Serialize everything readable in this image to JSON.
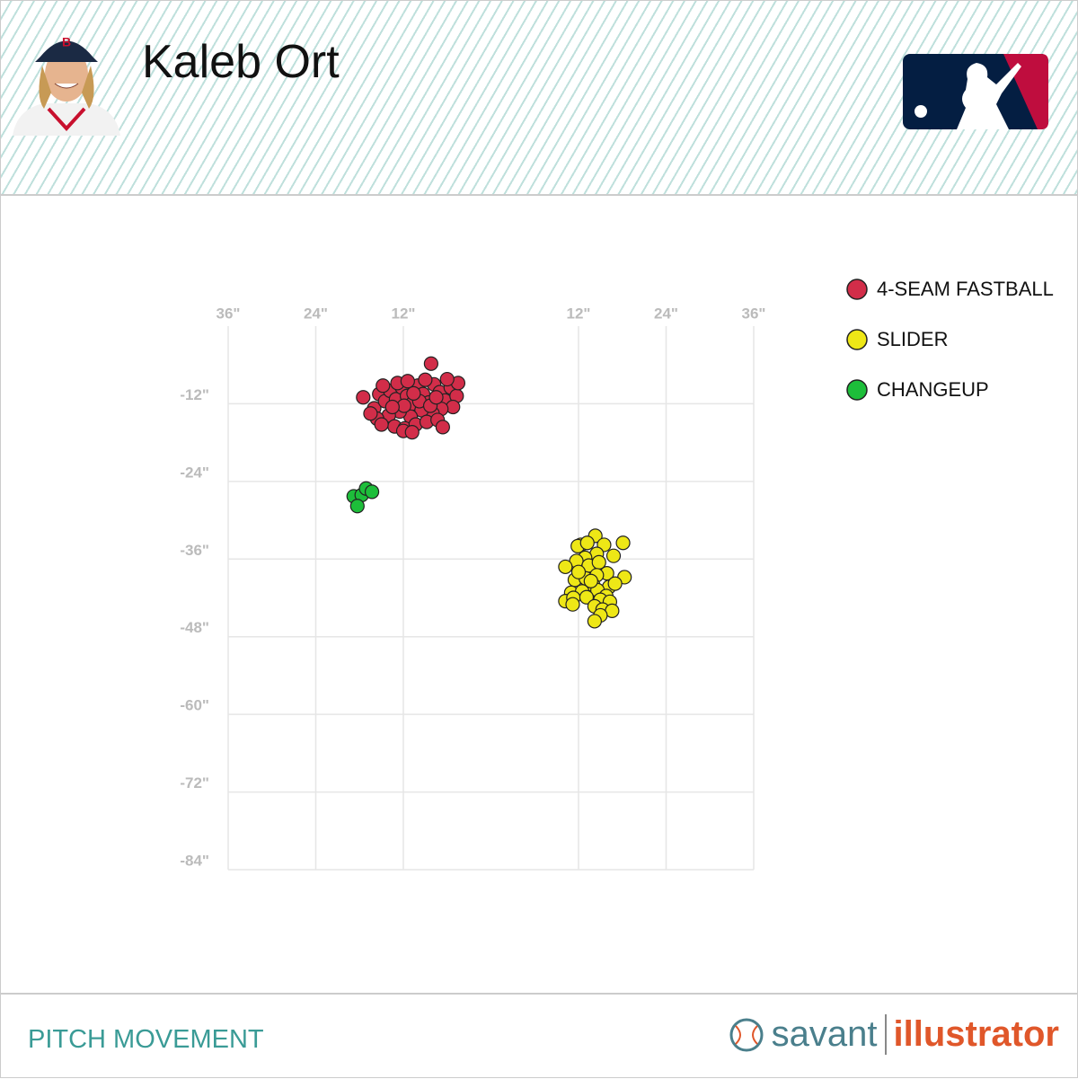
{
  "header": {
    "player_name": "Kaleb Ort"
  },
  "footer": {
    "title": "PITCH MOVEMENT",
    "brand_1": "savant",
    "brand_2": "illustrator"
  },
  "chart_data": {
    "type": "scatter",
    "xlim": [
      -36,
      36
    ],
    "ylim": [
      -84,
      0
    ],
    "xticks": [
      {
        "value": -36,
        "label": "36\""
      },
      {
        "value": -24,
        "label": "24\""
      },
      {
        "value": -12,
        "label": "12\""
      },
      {
        "value": 12,
        "label": "12\""
      },
      {
        "value": 24,
        "label": "24\""
      },
      {
        "value": 36,
        "label": "36\""
      }
    ],
    "yticks": [
      {
        "value": -12,
        "label": "-12\""
      },
      {
        "value": -24,
        "label": "-24\""
      },
      {
        "value": -36,
        "label": "-36\""
      },
      {
        "value": -48,
        "label": "-48\""
      },
      {
        "value": -60,
        "label": "-60\""
      },
      {
        "value": -72,
        "label": "-72\""
      },
      {
        "value": -84,
        "label": "-84\""
      }
    ],
    "grid": true,
    "legend": "top-right",
    "series": [
      {
        "name": "4-SEAM FASTBALL",
        "color": "#d22d49",
        "x": [
          -8.2,
          -17.5,
          -16.0,
          -15.3,
          -14.5,
          -13.8,
          -13.0,
          -12.2,
          -11.5,
          -10.8,
          -10.0,
          -9.3,
          -8.5,
          -7.8,
          -7.0,
          -6.3,
          -5.5,
          -4.7,
          -4.5,
          -5.2,
          -6.8,
          -8.0,
          -9.5,
          -11.0,
          -12.5,
          -14.0,
          -15.6,
          -13.2,
          -11.8,
          -10.3,
          -8.8,
          -7.3,
          -6.6,
          -9.8,
          -11.9,
          -13.5,
          -10.6,
          -12.8,
          -9.0,
          -6.0,
          -14.8,
          -16.5,
          -12.0,
          -10.8,
          -8.3,
          -7.5,
          -15.0,
          -11.4
        ],
        "y": [
          -5.8,
          -11.0,
          -12.7,
          -10.5,
          -11.6,
          -10.0,
          -11.3,
          -9.5,
          -10.8,
          -12.0,
          -9.2,
          -10.5,
          -11.8,
          -9.0,
          -10.2,
          -11.5,
          -9.5,
          -10.8,
          -8.8,
          -12.5,
          -12.8,
          -13.5,
          -13.0,
          -14.0,
          -13.2,
          -13.8,
          -14.3,
          -15.5,
          -15.8,
          -15.2,
          -14.8,
          -14.5,
          -15.6,
          -11.6,
          -12.3,
          -12.5,
          -10.4,
          -8.8,
          -8.3,
          -8.2,
          -9.2,
          -13.5,
          -16.2,
          -16.4,
          -12.3,
          -11.0,
          -15.2,
          -8.5
        ]
      },
      {
        "name": "SLIDER",
        "color": "#eee716",
        "x": [
          14.3,
          12.3,
          11.9,
          13.2,
          15.5,
          18.1,
          16.8,
          14.5,
          12.9,
          11.7,
          10.2,
          13.4,
          14.8,
          15.9,
          18.3,
          11.5,
          13.0,
          14.5,
          14.0,
          16.2,
          17.0,
          11.0,
          12.5,
          14.6,
          15.8,
          10.2,
          11.3,
          13.1,
          15.0,
          16.3,
          11.2,
          14.2,
          15.3,
          16.6,
          15.0,
          14.2,
          13.7,
          12.0
        ],
        "y": [
          -32.4,
          -33.8,
          -34.0,
          -33.5,
          -33.8,
          -33.5,
          -35.5,
          -35.2,
          -35.8,
          -36.3,
          -37.2,
          -37.0,
          -36.5,
          -38.2,
          -38.8,
          -39.2,
          -39.0,
          -38.5,
          -40.0,
          -40.3,
          -39.8,
          -41.2,
          -41.0,
          -40.8,
          -41.7,
          -42.5,
          -42.0,
          -41.9,
          -42.3,
          -42.6,
          -43.0,
          -43.3,
          -43.8,
          -44.0,
          -44.7,
          -45.6,
          -39.4,
          -38.0
        ]
      },
      {
        "name": "CHANGEUP",
        "color": "#1dbe3a",
        "x": [
          -18.8,
          -17.7,
          -17.1,
          -16.3,
          -18.3
        ],
        "y": [
          -26.3,
          -26.1,
          -25.1,
          -25.6,
          -27.8
        ]
      }
    ]
  }
}
